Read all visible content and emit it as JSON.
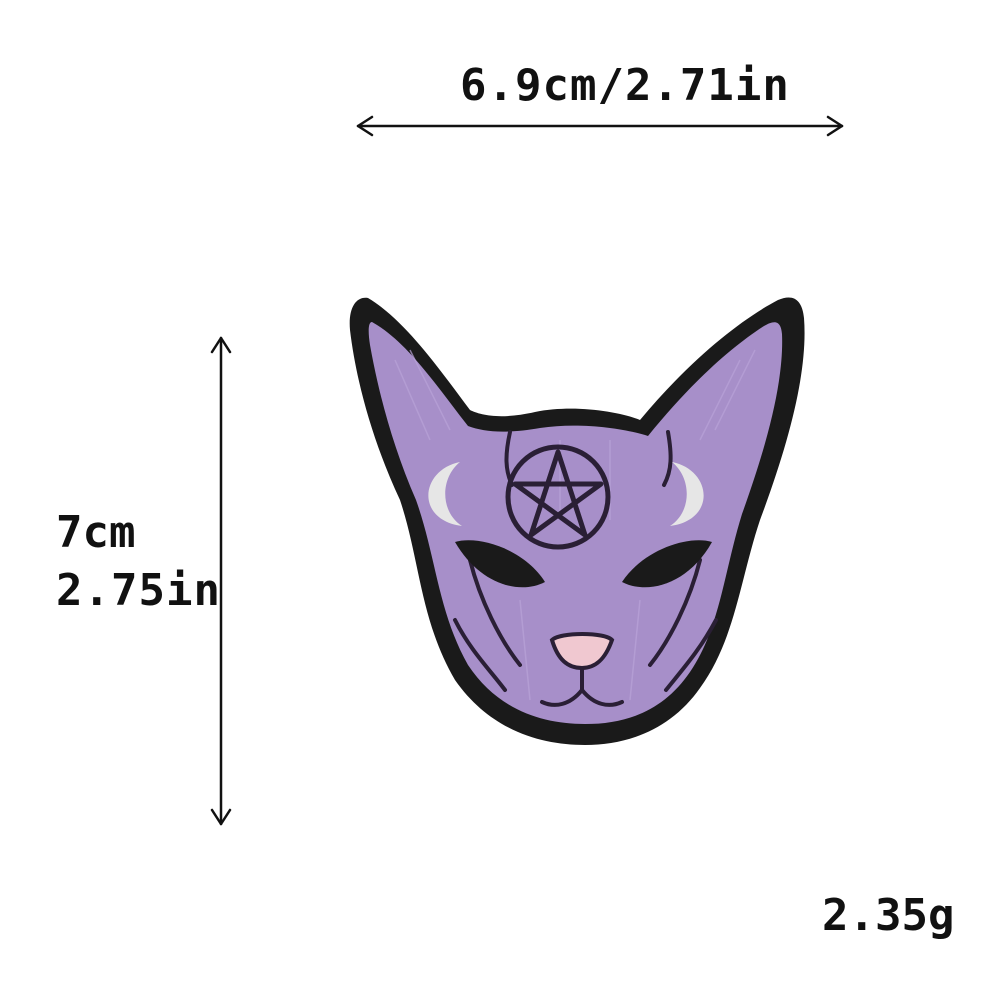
{
  "dimensions": {
    "width_label": "6.9cm/2.71in",
    "height_cm_label": "7cm",
    "height_in_label": "2.75in",
    "weight_label": "2.35g"
  },
  "product": {
    "type": "embroidered-patch",
    "subject": "cat-head",
    "colors": {
      "border": "#1a1a1a",
      "fill": "#a78fc9",
      "fill_light": "#b9a3d8",
      "stitch_dark": "#2a1f35",
      "moon": "#e6e6e6",
      "nose": "#f0c8d0"
    }
  }
}
